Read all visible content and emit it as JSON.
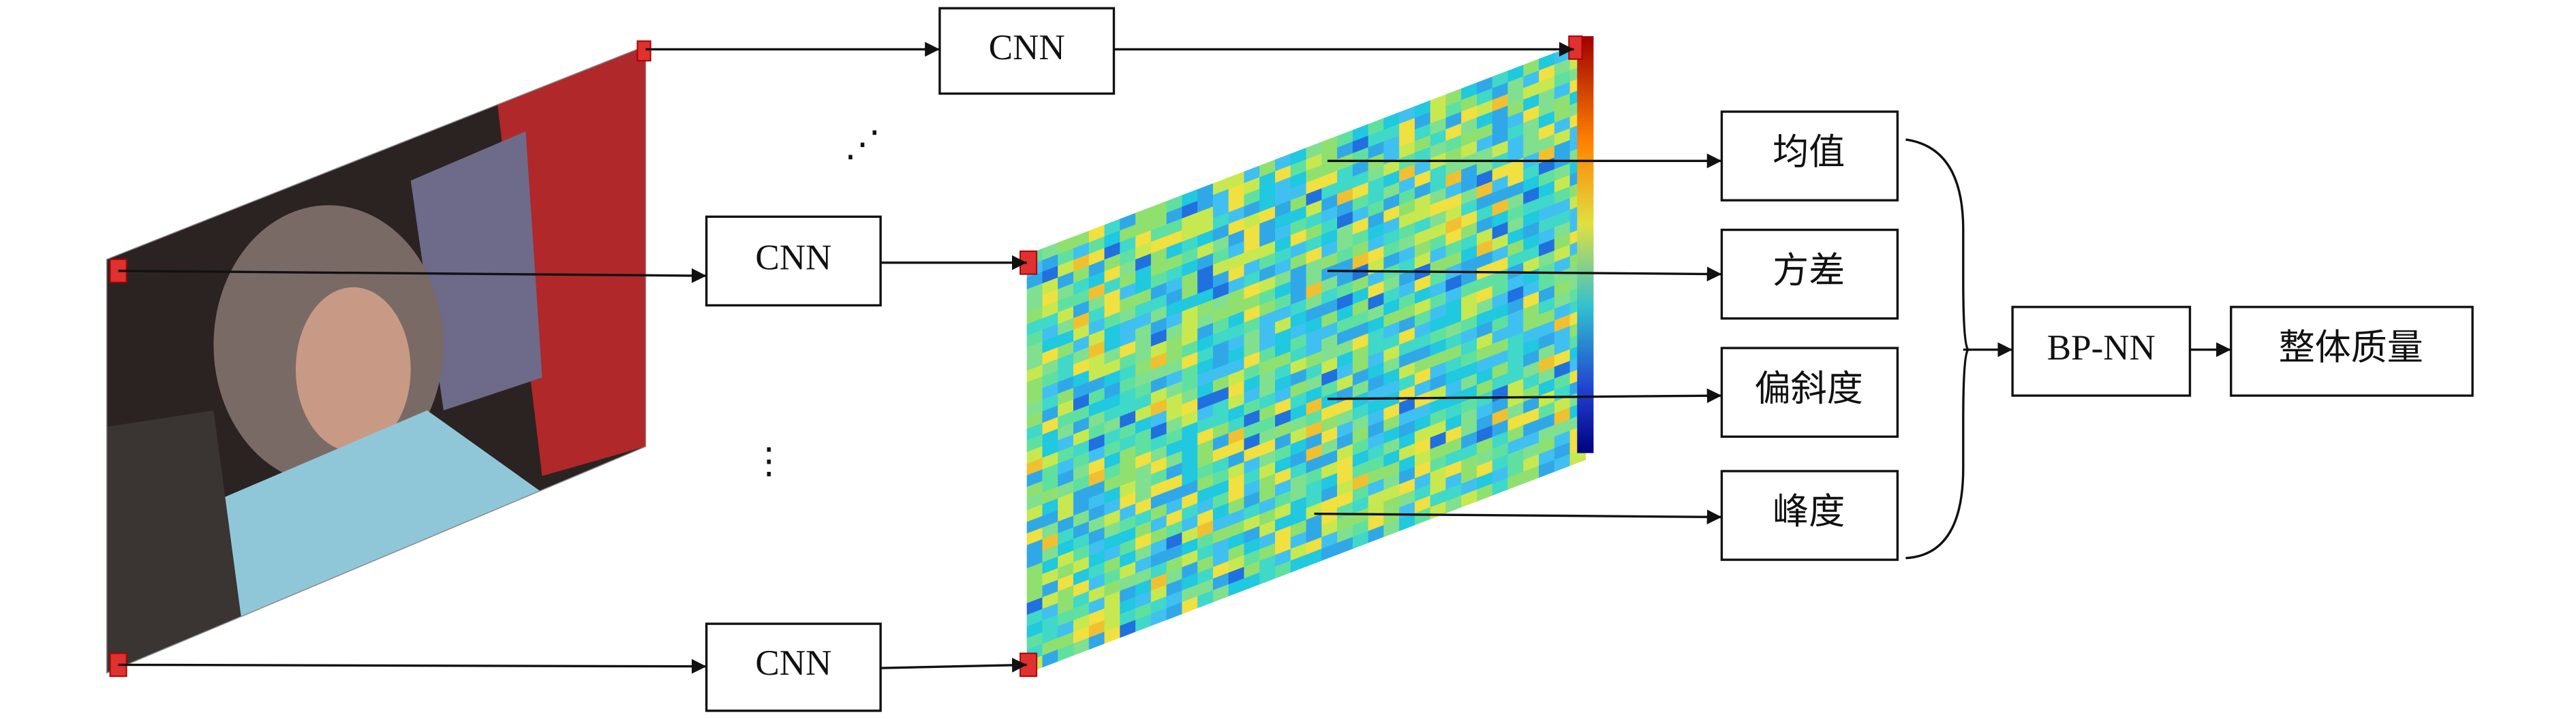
{
  "nodes": [
    {
      "label": "CNN"
    },
    {
      "label": "CNN"
    },
    {
      "label": "CNN"
    },
    {
      "label": "均值"
    },
    {
      "label": "方差"
    },
    {
      "label": "偏斜度"
    },
    {
      "label": "峰度"
    },
    {
      "label": "BP-NN"
    },
    {
      "label": "整体质量"
    }
  ],
  "ellipses": [
    "⋰",
    "⋮"
  ]
}
